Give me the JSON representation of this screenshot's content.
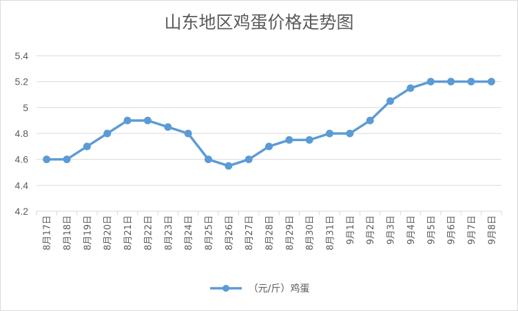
{
  "chart_data": {
    "type": "line",
    "title": "山东地区鸡蛋价格走势图",
    "categories": [
      "8月17日",
      "8月18日",
      "8月19日",
      "8月20日",
      "8月21日",
      "8月22日",
      "8月23日",
      "8月24日",
      "8月25日",
      "8月26日",
      "8月27日",
      "8月28日",
      "8月29日",
      "8月30日",
      "8月31日",
      "9月1日",
      "9月2日",
      "9月3日",
      "9月4日",
      "9月5日",
      "9月6日",
      "9月7日",
      "9月8日"
    ],
    "series": [
      {
        "name": "（元/斤）鸡蛋",
        "color": "#5b9bd5",
        "values": [
          4.6,
          4.6,
          4.7,
          4.8,
          4.9,
          4.9,
          4.85,
          4.8,
          4.6,
          4.55,
          4.6,
          4.7,
          4.75,
          4.75,
          4.8,
          4.8,
          4.9,
          5.05,
          5.15,
          5.2,
          5.2,
          5.2,
          5.2
        ]
      }
    ],
    "ylim": [
      4.2,
      5.4
    ],
    "yticks": [
      "4.2",
      "4.4",
      "4.6",
      "4.8",
      "5",
      "5.2",
      "5.4"
    ],
    "grid": true,
    "legend": "bottom"
  }
}
